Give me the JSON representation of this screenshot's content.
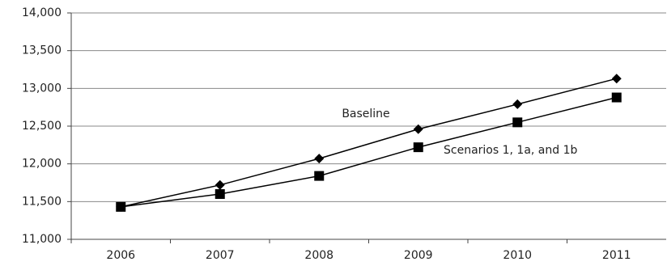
{
  "chart_data": {
    "type": "line",
    "categories": [
      "2006",
      "2007",
      "2008",
      "2009",
      "2010",
      "2011"
    ],
    "series": [
      {
        "name": "Baseline",
        "color": "#000000",
        "marker": "diamond",
        "values": [
          11430,
          11720,
          12070,
          12460,
          12790,
          13130
        ]
      },
      {
        "name": "Scenarios 1, 1a, and 1b",
        "color": "#000000",
        "marker": "square",
        "values": [
          11430,
          11600,
          11840,
          12220,
          12550,
          12880
        ]
      }
    ],
    "ylim": [
      11000,
      14000
    ],
    "yticks": [
      {
        "value": 11000,
        "label": "11,000"
      },
      {
        "value": 11500,
        "label": "11,500"
      },
      {
        "value": 12000,
        "label": "12,000"
      },
      {
        "value": 12500,
        "label": "12,500"
      },
      {
        "value": 13000,
        "label": "13,000"
      },
      {
        "value": 13500,
        "label": "13,500"
      },
      {
        "value": 14000,
        "label": "14,000"
      }
    ],
    "grid": true
  }
}
